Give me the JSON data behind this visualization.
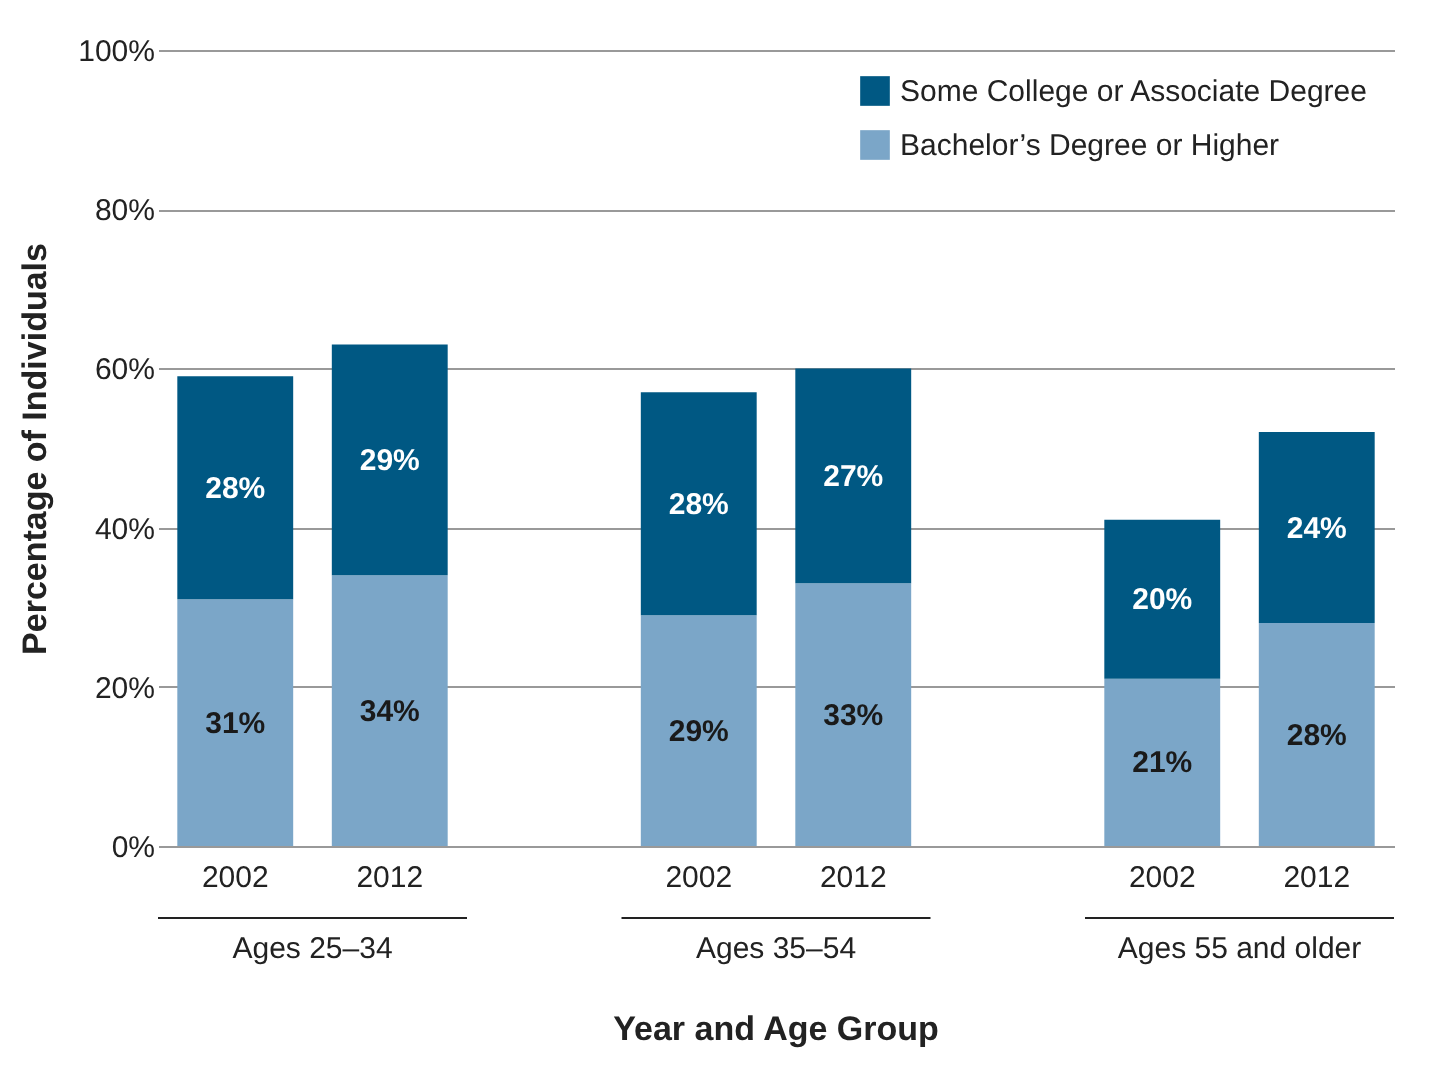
{
  "chart_data": {
    "type": "bar",
    "stacked": true,
    "xlabel": "Year and Age Group",
    "ylabel": "Percentage of Individuals",
    "categories": [
      "2002",
      "2012",
      null,
      "2002",
      "2012",
      null,
      "2002",
      "2012"
    ],
    "annotations": [
      "Ages 25–34",
      "Ages 35–54",
      "Ages 55 and older"
    ],
    "series": [
      {
        "name": "Bachelor’s Degree or Higher",
        "color": "#7ba6c8",
        "values": [
          31,
          34,
          null,
          29,
          33,
          null,
          21,
          28
        ],
        "value_labels": [
          "31%",
          "34%",
          null,
          "29%",
          "33%",
          null,
          "21%",
          "28%"
        ]
      },
      {
        "name": "Some College or Associate Degree",
        "color": "#005883",
        "values": [
          28,
          29,
          null,
          28,
          27,
          null,
          20,
          24
        ],
        "value_labels": [
          "28%",
          "29%",
          null,
          "28%",
          "27%",
          null,
          "20%",
          "24%"
        ]
      }
    ],
    "ylim": [
      0,
      100
    ],
    "yticks": [
      {
        "value": 0,
        "label": "0%"
      },
      {
        "value": 20,
        "label": "20%"
      },
      {
        "value": 40,
        "label": "40%"
      },
      {
        "value": 60,
        "label": "60%"
      },
      {
        "value": 80,
        "label": "80%"
      },
      {
        "value": 100,
        "label": "100%"
      }
    ],
    "grid": "y",
    "legend": "top right"
  }
}
